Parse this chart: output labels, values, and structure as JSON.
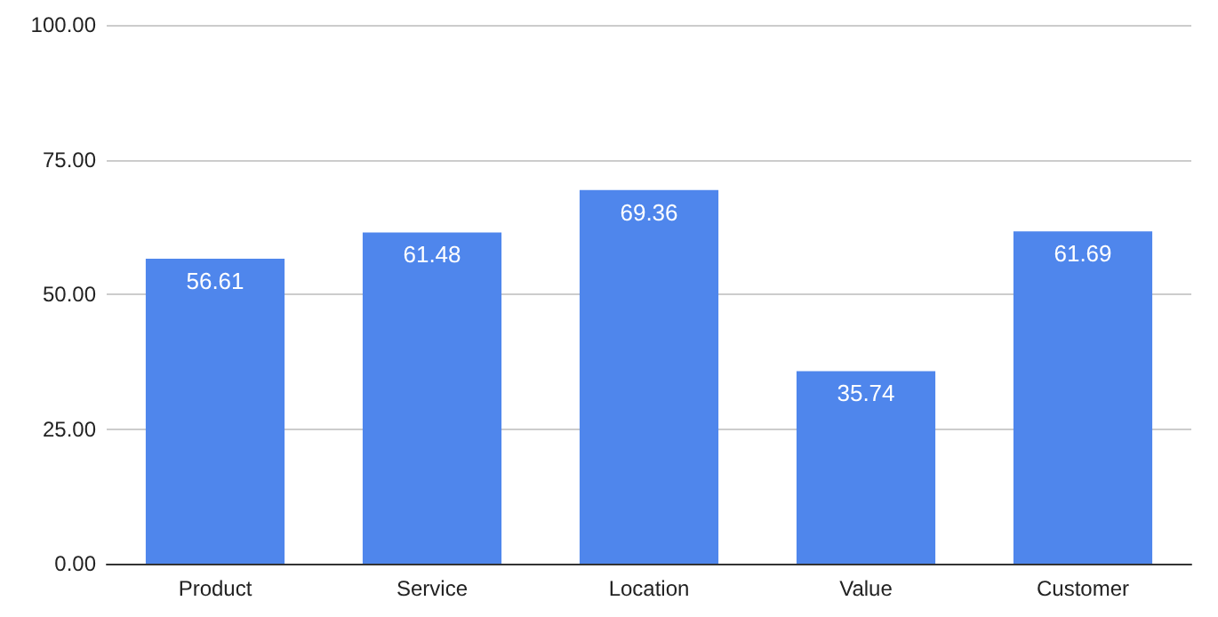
{
  "chart_data": {
    "type": "bar",
    "categories": [
      "Product",
      "Service",
      "Location",
      "Value",
      "Customer"
    ],
    "values": [
      56.61,
      61.48,
      69.36,
      35.74,
      61.69
    ],
    "color": "#4f86ec",
    "ylim": [
      0,
      100
    ],
    "yticks": [
      {
        "value": 0,
        "label": "0.00"
      },
      {
        "value": 25,
        "label": "25.00"
      },
      {
        "value": 50,
        "label": "50.00"
      },
      {
        "value": 75,
        "label": "75.00"
      },
      {
        "value": 100,
        "label": "100.00"
      }
    ],
    "grid": true,
    "data_labels": true
  }
}
